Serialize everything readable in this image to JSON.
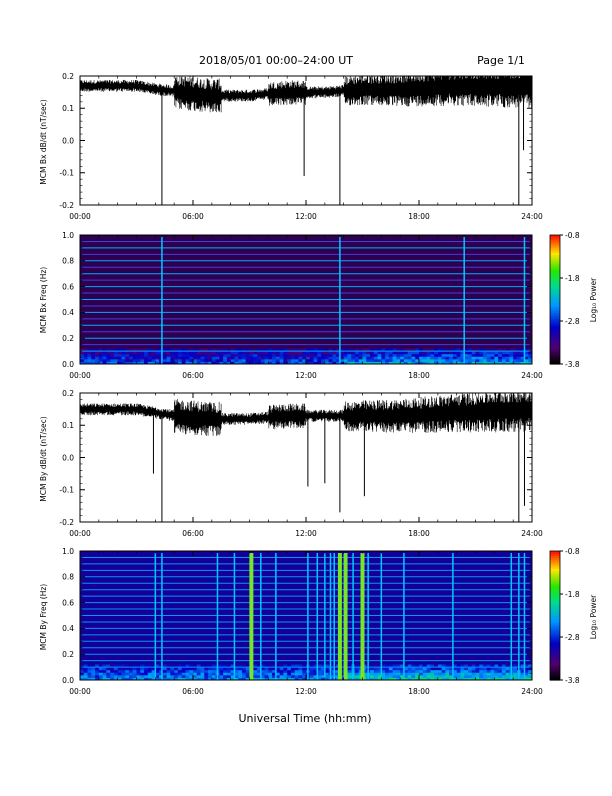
{
  "header": {
    "title": "2018/05/01   00:00–24:00 UT",
    "page": "Page 1/1"
  },
  "footer": {
    "xlabel": "Universal Time (hh:mm)"
  },
  "chart_data": [
    {
      "type": "line",
      "ylabel": "MCM Bx dB/dt (nT/sec)",
      "xlim": [
        0,
        24
      ],
      "ylim": [
        -0.2,
        0.2
      ],
      "x_ticks": [
        "00:00",
        "06:00",
        "12:00",
        "18:00",
        "24:00"
      ],
      "y_ticks": [
        "-0.2",
        "-0.1",
        "0.0",
        "0.1",
        "0.2"
      ],
      "baseline": [
        [
          0,
          0.17
        ],
        [
          3,
          0.17
        ],
        [
          4,
          0.16
        ],
        [
          5.5,
          0.15
        ],
        [
          7,
          0.14
        ],
        [
          9,
          0.14
        ],
        [
          11,
          0.15
        ],
        [
          13,
          0.15
        ],
        [
          15,
          0.16
        ],
        [
          17,
          0.16
        ],
        [
          20,
          0.17
        ],
        [
          24,
          0.17
        ]
      ],
      "spikes": [
        {
          "x": 4.35,
          "y": -0.2
        },
        {
          "x": 11.9,
          "y": -0.11
        },
        {
          "x": 13.8,
          "y": -0.2
        },
        {
          "x": 23.3,
          "y": -0.2
        },
        {
          "x": 23.55,
          "y": -0.03
        }
      ]
    },
    {
      "type": "heatmap",
      "ylabel": "MCM Bx Freq (Hz)",
      "xlim": [
        0,
        24
      ],
      "ylim": [
        0,
        1.0
      ],
      "x_ticks": [
        "00:00",
        "06:00",
        "12:00",
        "18:00",
        "24:00"
      ],
      "y_ticks": [
        "0.0",
        "0.2",
        "0.4",
        "0.6",
        "0.8",
        "1.0"
      ],
      "colorbar": {
        "label": "Log₁₀ Power",
        "ticks": [
          "-0.8",
          "-1.8",
          "-2.8",
          "-3.8"
        ],
        "range": [
          -3.8,
          -0.8
        ]
      },
      "harmonic_step_hz": 0.05,
      "vertical_events": [
        4.35,
        13.8,
        20.4,
        23.6
      ],
      "low_freq_enhancement": [
        [
          14,
          24
        ]
      ]
    },
    {
      "type": "line",
      "ylabel": "MCM By dB/dt (nT/sec)",
      "xlim": [
        0,
        24
      ],
      "ylim": [
        -0.2,
        0.2
      ],
      "x_ticks": [
        "00:00",
        "06:00",
        "12:00",
        "18:00",
        "24:00"
      ],
      "y_ticks": [
        "-0.2",
        "-0.1",
        "0.0",
        "0.1",
        "0.2"
      ],
      "baseline": [
        [
          0,
          0.15
        ],
        [
          3,
          0.15
        ],
        [
          5,
          0.13
        ],
        [
          7,
          0.12
        ],
        [
          9,
          0.12
        ],
        [
          11,
          0.13
        ],
        [
          13,
          0.13
        ],
        [
          15,
          0.13
        ],
        [
          17,
          0.13
        ],
        [
          20,
          0.14
        ],
        [
          24,
          0.15
        ]
      ],
      "spikes": [
        {
          "x": 3.9,
          "y": -0.05
        },
        {
          "x": 4.35,
          "y": -0.2
        },
        {
          "x": 12.1,
          "y": -0.09
        },
        {
          "x": 13.0,
          "y": -0.08
        },
        {
          "x": 13.8,
          "y": -0.17
        },
        {
          "x": 15.1,
          "y": -0.12
        },
        {
          "x": 23.3,
          "y": -0.2
        },
        {
          "x": 23.6,
          "y": -0.15
        }
      ]
    },
    {
      "type": "heatmap",
      "ylabel": "MCM By Freq (Hz)",
      "xlim": [
        0,
        24
      ],
      "ylim": [
        0,
        1.0
      ],
      "x_ticks": [
        "00:00",
        "06:00",
        "12:00",
        "18:00",
        "24:00"
      ],
      "y_ticks": [
        "0.0",
        "0.2",
        "0.4",
        "0.6",
        "0.8",
        "1.0"
      ],
      "colorbar": {
        "label": "Log₁₀ Power",
        "ticks": [
          "-0.8",
          "-1.8",
          "-2.8",
          "-3.8"
        ],
        "range": [
          -3.8,
          -0.8
        ]
      },
      "harmonic_step_hz": 0.05,
      "vertical_events": [
        4.0,
        4.35,
        7.3,
        8.2,
        9.1,
        9.6,
        10.4,
        12.1,
        12.6,
        13.0,
        13.3,
        13.5,
        13.8,
        14.1,
        14.5,
        15.0,
        15.3,
        16.0,
        17.2,
        19.8,
        22.9,
        23.3,
        23.6
      ],
      "strong_events": [
        9.1,
        13.8,
        14.1,
        15.0
      ],
      "low_freq_enhancement": [
        [
          14,
          24
        ]
      ]
    }
  ]
}
